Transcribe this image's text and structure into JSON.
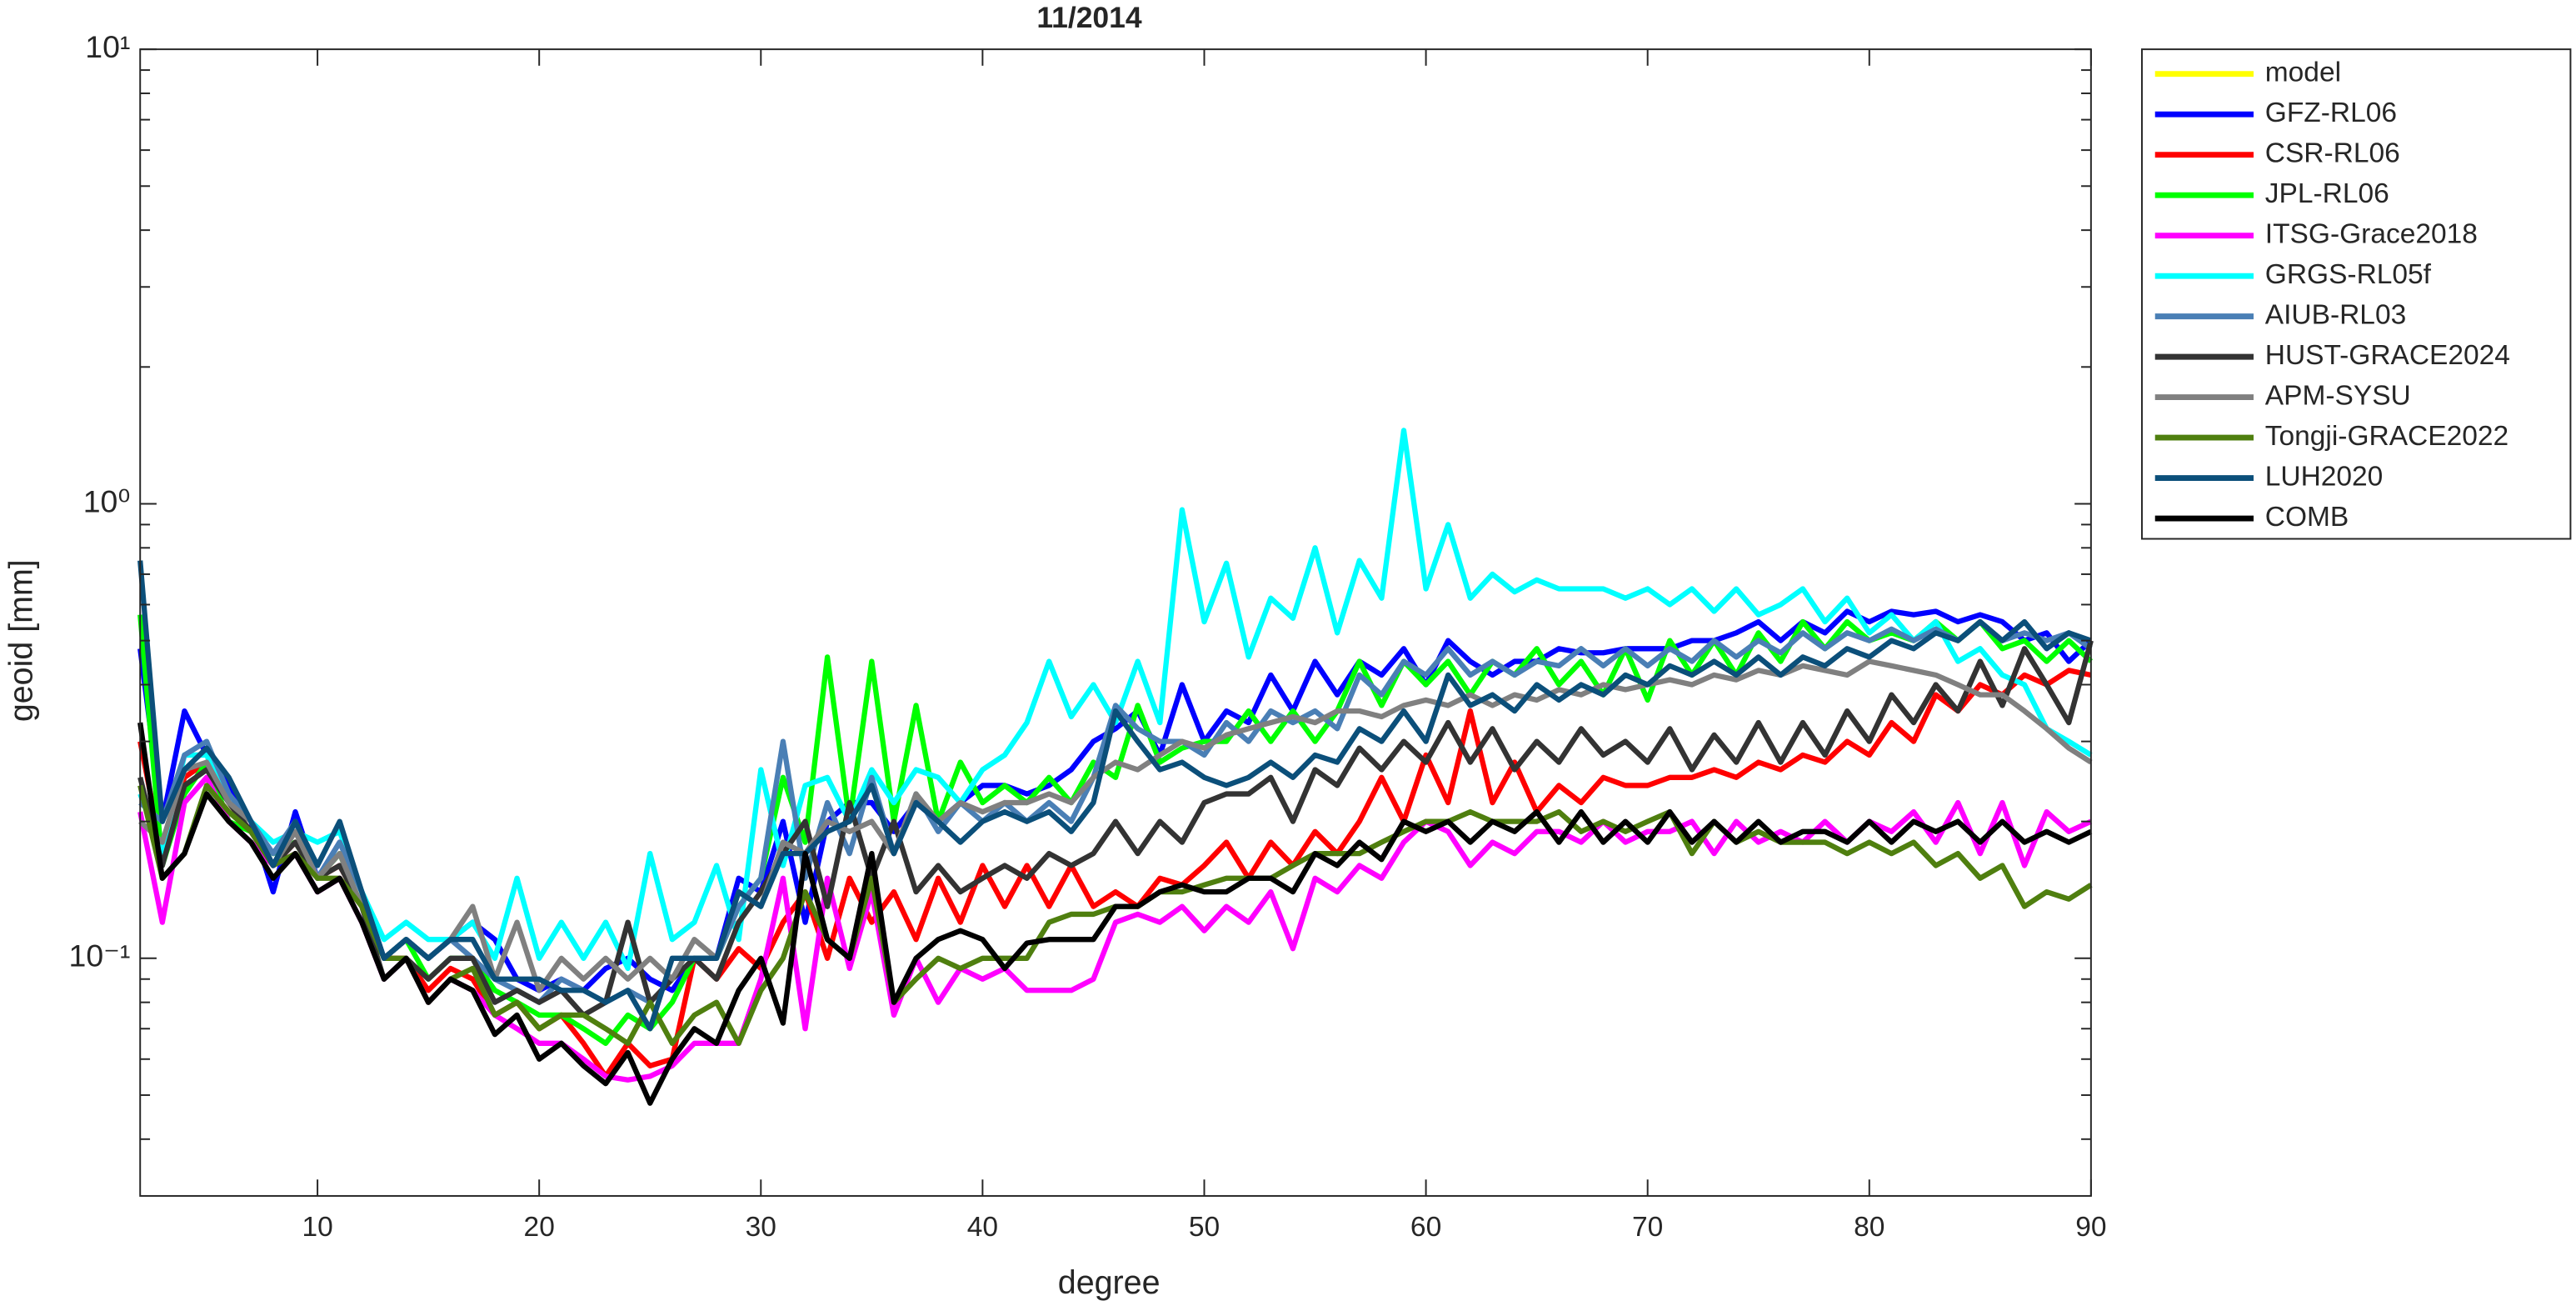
{
  "chart_data": {
    "type": "line",
    "title": "11/2014",
    "xlabel": "degree",
    "ylabel": "geoid [mm]",
    "log_y": true,
    "grid": false,
    "xlim": [
      2,
      90
    ],
    "xticks": [
      10,
      20,
      30,
      40,
      50,
      60,
      70,
      80,
      90
    ],
    "ylim": [
      0.03,
      10
    ],
    "yticks": [
      {
        "value": 0.1,
        "label": "10⁻¹"
      },
      {
        "value": 1,
        "label": "10⁰"
      },
      {
        "value": 10,
        "label": "10¹"
      }
    ],
    "yminorticks": [
      0.04,
      0.05,
      0.06,
      0.07,
      0.08,
      0.09,
      0.2,
      0.3,
      0.4,
      0.5,
      0.6,
      0.7,
      0.8,
      0.9,
      2,
      3,
      4,
      5,
      6,
      7,
      8,
      9
    ],
    "x": [
      2,
      3,
      4,
      5,
      6,
      7,
      8,
      9,
      10,
      11,
      12,
      13,
      14,
      15,
      16,
      17,
      18,
      19,
      20,
      21,
      22,
      23,
      24,
      25,
      26,
      27,
      28,
      29,
      30,
      31,
      32,
      33,
      34,
      35,
      36,
      37,
      38,
      39,
      40,
      41,
      42,
      43,
      44,
      45,
      46,
      47,
      48,
      49,
      50,
      51,
      52,
      53,
      54,
      55,
      56,
      57,
      58,
      59,
      60,
      61,
      62,
      63,
      64,
      65,
      66,
      67,
      68,
      69,
      70,
      71,
      72,
      73,
      74,
      75,
      76,
      77,
      78,
      79,
      80,
      81,
      82,
      83,
      84,
      85,
      86,
      87,
      88,
      89,
      90
    ],
    "series": [
      {
        "name": "model",
        "color": "#ffff00",
        "values": [
          null,
          null,
          null,
          null,
          null,
          null,
          null,
          null,
          null,
          null,
          null,
          null,
          null,
          null,
          null,
          null,
          null,
          null,
          null,
          null,
          null,
          null,
          null,
          null,
          null,
          null,
          null,
          null,
          null,
          null,
          null,
          null,
          null,
          null,
          null,
          null,
          null,
          null,
          null,
          null,
          null,
          null,
          null,
          null,
          null,
          null,
          null,
          null,
          null,
          null,
          null,
          null,
          null,
          null,
          null,
          null,
          null,
          null,
          null,
          null,
          null,
          null,
          null,
          null,
          null,
          null,
          null,
          null,
          null,
          null,
          null,
          null,
          null,
          null,
          null,
          null,
          null,
          null,
          null,
          null,
          null,
          null,
          null,
          null,
          null,
          null,
          null,
          null,
          null
        ]
      },
      {
        "name": "GFZ-RL06",
        "color": "#0000ff",
        "values": [
          0.48,
          0.2,
          0.35,
          0.28,
          0.24,
          0.2,
          0.14,
          0.21,
          0.15,
          0.18,
          0.14,
          0.1,
          0.11,
          0.1,
          0.11,
          0.12,
          0.11,
          0.09,
          0.085,
          0.09,
          0.085,
          0.095,
          0.1,
          0.09,
          0.085,
          0.1,
          0.1,
          0.15,
          0.14,
          0.2,
          0.12,
          0.2,
          0.22,
          0.22,
          0.19,
          0.22,
          0.2,
          0.22,
          0.24,
          0.24,
          0.23,
          0.24,
          0.26,
          0.3,
          0.32,
          0.35,
          0.28,
          0.4,
          0.3,
          0.35,
          0.33,
          0.42,
          0.35,
          0.45,
          0.38,
          0.45,
          0.42,
          0.48,
          0.4,
          0.5,
          0.45,
          0.42,
          0.45,
          0.45,
          0.48,
          0.47,
          0.47,
          0.48,
          0.48,
          0.48,
          0.5,
          0.5,
          0.52,
          0.55,
          0.5,
          0.55,
          0.52,
          0.58,
          0.55,
          0.58,
          0.57,
          0.58,
          0.55,
          0.57,
          0.55,
          0.5,
          0.52,
          0.45,
          0.5
        ]
      },
      {
        "name": "CSR-RL06",
        "color": "#ff0000",
        "values": [
          0.3,
          0.17,
          0.25,
          0.27,
          0.22,
          0.19,
          0.16,
          0.18,
          0.15,
          0.16,
          0.13,
          0.1,
          0.1,
          0.085,
          0.095,
          0.09,
          0.075,
          0.08,
          0.07,
          0.075,
          0.065,
          0.055,
          0.065,
          0.058,
          0.06,
          0.1,
          0.09,
          0.105,
          0.095,
          0.12,
          0.14,
          0.1,
          0.15,
          0.12,
          0.14,
          0.11,
          0.15,
          0.12,
          0.16,
          0.13,
          0.16,
          0.13,
          0.16,
          0.13,
          0.14,
          0.13,
          0.15,
          0.145,
          0.16,
          0.18,
          0.15,
          0.18,
          0.16,
          0.19,
          0.17,
          0.2,
          0.25,
          0.2,
          0.28,
          0.22,
          0.35,
          0.22,
          0.27,
          0.21,
          0.24,
          0.22,
          0.25,
          0.24,
          0.24,
          0.25,
          0.25,
          0.26,
          0.25,
          0.27,
          0.26,
          0.28,
          0.27,
          0.3,
          0.28,
          0.33,
          0.3,
          0.38,
          0.35,
          0.4,
          0.38,
          0.42,
          0.4,
          0.43,
          0.42
        ]
      },
      {
        "name": "JPL-RL06",
        "color": "#00ff00",
        "values": [
          0.57,
          0.16,
          0.23,
          0.27,
          0.2,
          0.19,
          0.17,
          0.18,
          0.15,
          0.17,
          0.13,
          0.1,
          0.11,
          0.09,
          0.1,
          0.1,
          0.085,
          0.08,
          0.075,
          0.075,
          0.07,
          0.065,
          0.075,
          0.07,
          0.08,
          0.1,
          0.1,
          0.13,
          0.15,
          0.25,
          0.18,
          0.46,
          0.2,
          0.45,
          0.2,
          0.36,
          0.2,
          0.27,
          0.22,
          0.24,
          0.22,
          0.25,
          0.22,
          0.27,
          0.25,
          0.36,
          0.27,
          0.29,
          0.3,
          0.3,
          0.35,
          0.3,
          0.35,
          0.3,
          0.35,
          0.45,
          0.36,
          0.45,
          0.4,
          0.45,
          0.38,
          0.45,
          0.42,
          0.48,
          0.4,
          0.45,
          0.38,
          0.48,
          0.37,
          0.5,
          0.42,
          0.5,
          0.42,
          0.52,
          0.45,
          0.55,
          0.48,
          0.55,
          0.5,
          0.52,
          0.5,
          0.55,
          0.5,
          0.55,
          0.48,
          0.5,
          0.45,
          0.5,
          0.45
        ]
      },
      {
        "name": "ITSG-Grace2018",
        "color": "#ff00ff",
        "values": [
          0.21,
          0.12,
          0.22,
          0.25,
          0.2,
          0.18,
          0.16,
          0.17,
          0.14,
          0.15,
          0.12,
          0.09,
          0.1,
          0.08,
          0.09,
          0.085,
          0.075,
          0.07,
          0.065,
          0.065,
          0.06,
          0.055,
          0.054,
          0.055,
          0.058,
          0.065,
          0.065,
          0.065,
          0.09,
          0.15,
          0.07,
          0.15,
          0.095,
          0.14,
          0.075,
          0.1,
          0.08,
          0.095,
          0.09,
          0.095,
          0.085,
          0.085,
          0.085,
          0.09,
          0.12,
          0.125,
          0.12,
          0.13,
          0.115,
          0.13,
          0.12,
          0.14,
          0.105,
          0.15,
          0.14,
          0.16,
          0.15,
          0.18,
          0.2,
          0.19,
          0.16,
          0.18,
          0.17,
          0.19,
          0.19,
          0.18,
          0.2,
          0.18,
          0.19,
          0.19,
          0.2,
          0.17,
          0.2,
          0.18,
          0.19,
          0.18,
          0.2,
          0.18,
          0.2,
          0.19,
          0.21,
          0.18,
          0.22,
          0.17,
          0.22,
          0.16,
          0.21,
          0.19,
          0.2
        ]
      },
      {
        "name": "GRGS-RL05f",
        "color": "#00ffff",
        "values": [
          0.23,
          0.17,
          0.28,
          0.28,
          0.22,
          0.2,
          0.18,
          0.19,
          0.18,
          0.19,
          0.14,
          0.11,
          0.12,
          0.11,
          0.11,
          0.12,
          0.1,
          0.15,
          0.1,
          0.12,
          0.1,
          0.12,
          0.095,
          0.17,
          0.11,
          0.12,
          0.16,
          0.11,
          0.26,
          0.16,
          0.24,
          0.25,
          0.2,
          0.26,
          0.22,
          0.26,
          0.25,
          0.22,
          0.26,
          0.28,
          0.33,
          0.45,
          0.34,
          0.4,
          0.33,
          0.45,
          0.33,
          0.97,
          0.55,
          0.74,
          0.46,
          0.62,
          0.56,
          0.8,
          0.52,
          0.75,
          0.62,
          1.45,
          0.65,
          0.9,
          0.62,
          0.7,
          0.64,
          0.68,
          0.65,
          0.65,
          0.65,
          0.62,
          0.65,
          0.6,
          0.65,
          0.58,
          0.65,
          0.57,
          0.6,
          0.65,
          0.55,
          0.62,
          0.52,
          0.57,
          0.5,
          0.55,
          0.45,
          0.48,
          0.42,
          0.4,
          0.32,
          0.3,
          0.28
        ]
      },
      {
        "name": "AIUB-RL03",
        "color": "#4a7fb5",
        "values": [
          0.22,
          0.2,
          0.28,
          0.3,
          0.23,
          0.2,
          0.17,
          0.2,
          0.15,
          0.18,
          0.14,
          0.1,
          0.11,
          0.1,
          0.11,
          0.1,
          0.09,
          0.085,
          0.08,
          0.09,
          0.085,
          0.08,
          0.085,
          0.08,
          0.09,
          0.1,
          0.1,
          0.13,
          0.15,
          0.3,
          0.15,
          0.22,
          0.17,
          0.25,
          0.17,
          0.23,
          0.19,
          0.22,
          0.2,
          0.22,
          0.2,
          0.22,
          0.2,
          0.25,
          0.36,
          0.32,
          0.3,
          0.3,
          0.28,
          0.33,
          0.3,
          0.35,
          0.33,
          0.35,
          0.32,
          0.42,
          0.38,
          0.45,
          0.42,
          0.48,
          0.42,
          0.45,
          0.42,
          0.45,
          0.44,
          0.48,
          0.44,
          0.48,
          0.44,
          0.48,
          0.45,
          0.5,
          0.46,
          0.5,
          0.47,
          0.52,
          0.48,
          0.52,
          0.5,
          0.53,
          0.5,
          0.53,
          0.5,
          0.55,
          0.5,
          0.52,
          0.5,
          0.52,
          0.48
        ]
      },
      {
        "name": "HUST-GRACE2024",
        "color": "#333333",
        "values": [
          0.25,
          0.16,
          0.24,
          0.26,
          0.22,
          0.19,
          0.16,
          0.18,
          0.15,
          0.16,
          0.13,
          0.09,
          0.1,
          0.09,
          0.1,
          0.1,
          0.08,
          0.085,
          0.08,
          0.085,
          0.075,
          0.08,
          0.12,
          0.08,
          0.09,
          0.1,
          0.09,
          0.12,
          0.14,
          0.17,
          0.2,
          0.13,
          0.22,
          0.15,
          0.2,
          0.14,
          0.16,
          0.14,
          0.15,
          0.16,
          0.15,
          0.17,
          0.16,
          0.17,
          0.2,
          0.17,
          0.2,
          0.18,
          0.22,
          0.23,
          0.23,
          0.25,
          0.2,
          0.26,
          0.24,
          0.29,
          0.26,
          0.3,
          0.27,
          0.33,
          0.27,
          0.32,
          0.26,
          0.3,
          0.27,
          0.32,
          0.28,
          0.3,
          0.27,
          0.32,
          0.26,
          0.31,
          0.27,
          0.33,
          0.27,
          0.33,
          0.28,
          0.35,
          0.3,
          0.38,
          0.33,
          0.4,
          0.35,
          0.45,
          0.36,
          0.48,
          0.4,
          0.33,
          0.5
        ]
      },
      {
        "name": "APM-SYSU",
        "color": "#808080",
        "values": [
          0.2,
          0.18,
          0.26,
          0.27,
          0.22,
          0.2,
          0.16,
          0.19,
          0.15,
          0.17,
          0.13,
          0.1,
          0.11,
          0.1,
          0.11,
          0.13,
          0.09,
          0.12,
          0.085,
          0.1,
          0.09,
          0.1,
          0.09,
          0.1,
          0.09,
          0.11,
          0.1,
          0.14,
          0.13,
          0.18,
          0.17,
          0.2,
          0.19,
          0.2,
          0.17,
          0.23,
          0.2,
          0.22,
          0.21,
          0.22,
          0.22,
          0.23,
          0.22,
          0.25,
          0.27,
          0.26,
          0.28,
          0.3,
          0.29,
          0.31,
          0.32,
          0.33,
          0.34,
          0.33,
          0.35,
          0.35,
          0.34,
          0.36,
          0.37,
          0.36,
          0.38,
          0.36,
          0.38,
          0.37,
          0.39,
          0.38,
          0.4,
          0.39,
          0.4,
          0.41,
          0.4,
          0.42,
          0.41,
          0.43,
          0.42,
          0.44,
          0.43,
          0.42,
          0.45,
          0.44,
          0.43,
          0.42,
          0.4,
          0.38,
          0.38,
          0.35,
          0.32,
          0.29,
          0.27
        ]
      },
      {
        "name": "Tongji-GRACE2022",
        "color": "#4f7f0f",
        "values": [
          0.24,
          0.15,
          0.17,
          0.24,
          0.21,
          0.19,
          0.16,
          0.17,
          0.15,
          0.15,
          0.13,
          0.1,
          0.1,
          0.08,
          0.09,
          0.095,
          0.075,
          0.08,
          0.07,
          0.075,
          0.075,
          0.07,
          0.065,
          0.08,
          0.065,
          0.075,
          0.08,
          0.065,
          0.085,
          0.1,
          0.14,
          0.11,
          0.1,
          0.15,
          0.08,
          0.09,
          0.1,
          0.095,
          0.1,
          0.1,
          0.1,
          0.12,
          0.125,
          0.125,
          0.13,
          0.13,
          0.14,
          0.14,
          0.145,
          0.15,
          0.15,
          0.15,
          0.16,
          0.17,
          0.17,
          0.17,
          0.18,
          0.19,
          0.2,
          0.2,
          0.21,
          0.2,
          0.2,
          0.2,
          0.21,
          0.19,
          0.2,
          0.19,
          0.2,
          0.21,
          0.17,
          0.2,
          0.18,
          0.19,
          0.18,
          0.18,
          0.18,
          0.17,
          0.18,
          0.17,
          0.18,
          0.16,
          0.17,
          0.15,
          0.16,
          0.13,
          0.14,
          0.135,
          0.145
        ]
      },
      {
        "name": "LUH2020",
        "color": "#0b4f7a",
        "values": [
          0.75,
          0.2,
          0.26,
          0.29,
          0.25,
          0.2,
          0.16,
          0.2,
          0.16,
          0.2,
          0.14,
          0.1,
          0.11,
          0.1,
          0.11,
          0.11,
          0.09,
          0.09,
          0.09,
          0.085,
          0.085,
          0.08,
          0.085,
          0.07,
          0.1,
          0.1,
          0.1,
          0.14,
          0.13,
          0.17,
          0.17,
          0.19,
          0.2,
          0.24,
          0.17,
          0.22,
          0.2,
          0.18,
          0.2,
          0.21,
          0.2,
          0.21,
          0.19,
          0.22,
          0.35,
          0.3,
          0.26,
          0.27,
          0.25,
          0.24,
          0.25,
          0.27,
          0.25,
          0.28,
          0.27,
          0.32,
          0.3,
          0.35,
          0.3,
          0.42,
          0.36,
          0.38,
          0.35,
          0.4,
          0.37,
          0.4,
          0.38,
          0.42,
          0.4,
          0.44,
          0.42,
          0.45,
          0.42,
          0.46,
          0.42,
          0.46,
          0.44,
          0.48,
          0.46,
          0.5,
          0.48,
          0.52,
          0.5,
          0.55,
          0.5,
          0.55,
          0.48,
          0.52,
          0.5
        ]
      },
      {
        "name": "COMB",
        "color": "#000000",
        "values": [
          0.33,
          0.15,
          0.17,
          0.23,
          0.2,
          0.18,
          0.15,
          0.17,
          0.14,
          0.15,
          0.12,
          0.09,
          0.1,
          0.08,
          0.09,
          0.085,
          0.068,
          0.075,
          0.06,
          0.065,
          0.058,
          0.053,
          0.062,
          0.048,
          0.06,
          0.07,
          0.065,
          0.085,
          0.1,
          0.072,
          0.17,
          0.11,
          0.1,
          0.17,
          0.08,
          0.1,
          0.11,
          0.115,
          0.11,
          0.095,
          0.108,
          0.11,
          0.11,
          0.11,
          0.13,
          0.13,
          0.14,
          0.145,
          0.14,
          0.14,
          0.15,
          0.15,
          0.14,
          0.17,
          0.16,
          0.18,
          0.165,
          0.2,
          0.19,
          0.2,
          0.18,
          0.2,
          0.19,
          0.21,
          0.18,
          0.21,
          0.18,
          0.2,
          0.18,
          0.21,
          0.18,
          0.2,
          0.18,
          0.2,
          0.18,
          0.19,
          0.19,
          0.18,
          0.2,
          0.18,
          0.2,
          0.19,
          0.2,
          0.18,
          0.2,
          0.18,
          0.19,
          0.18,
          0.19
        ]
      }
    ]
  }
}
